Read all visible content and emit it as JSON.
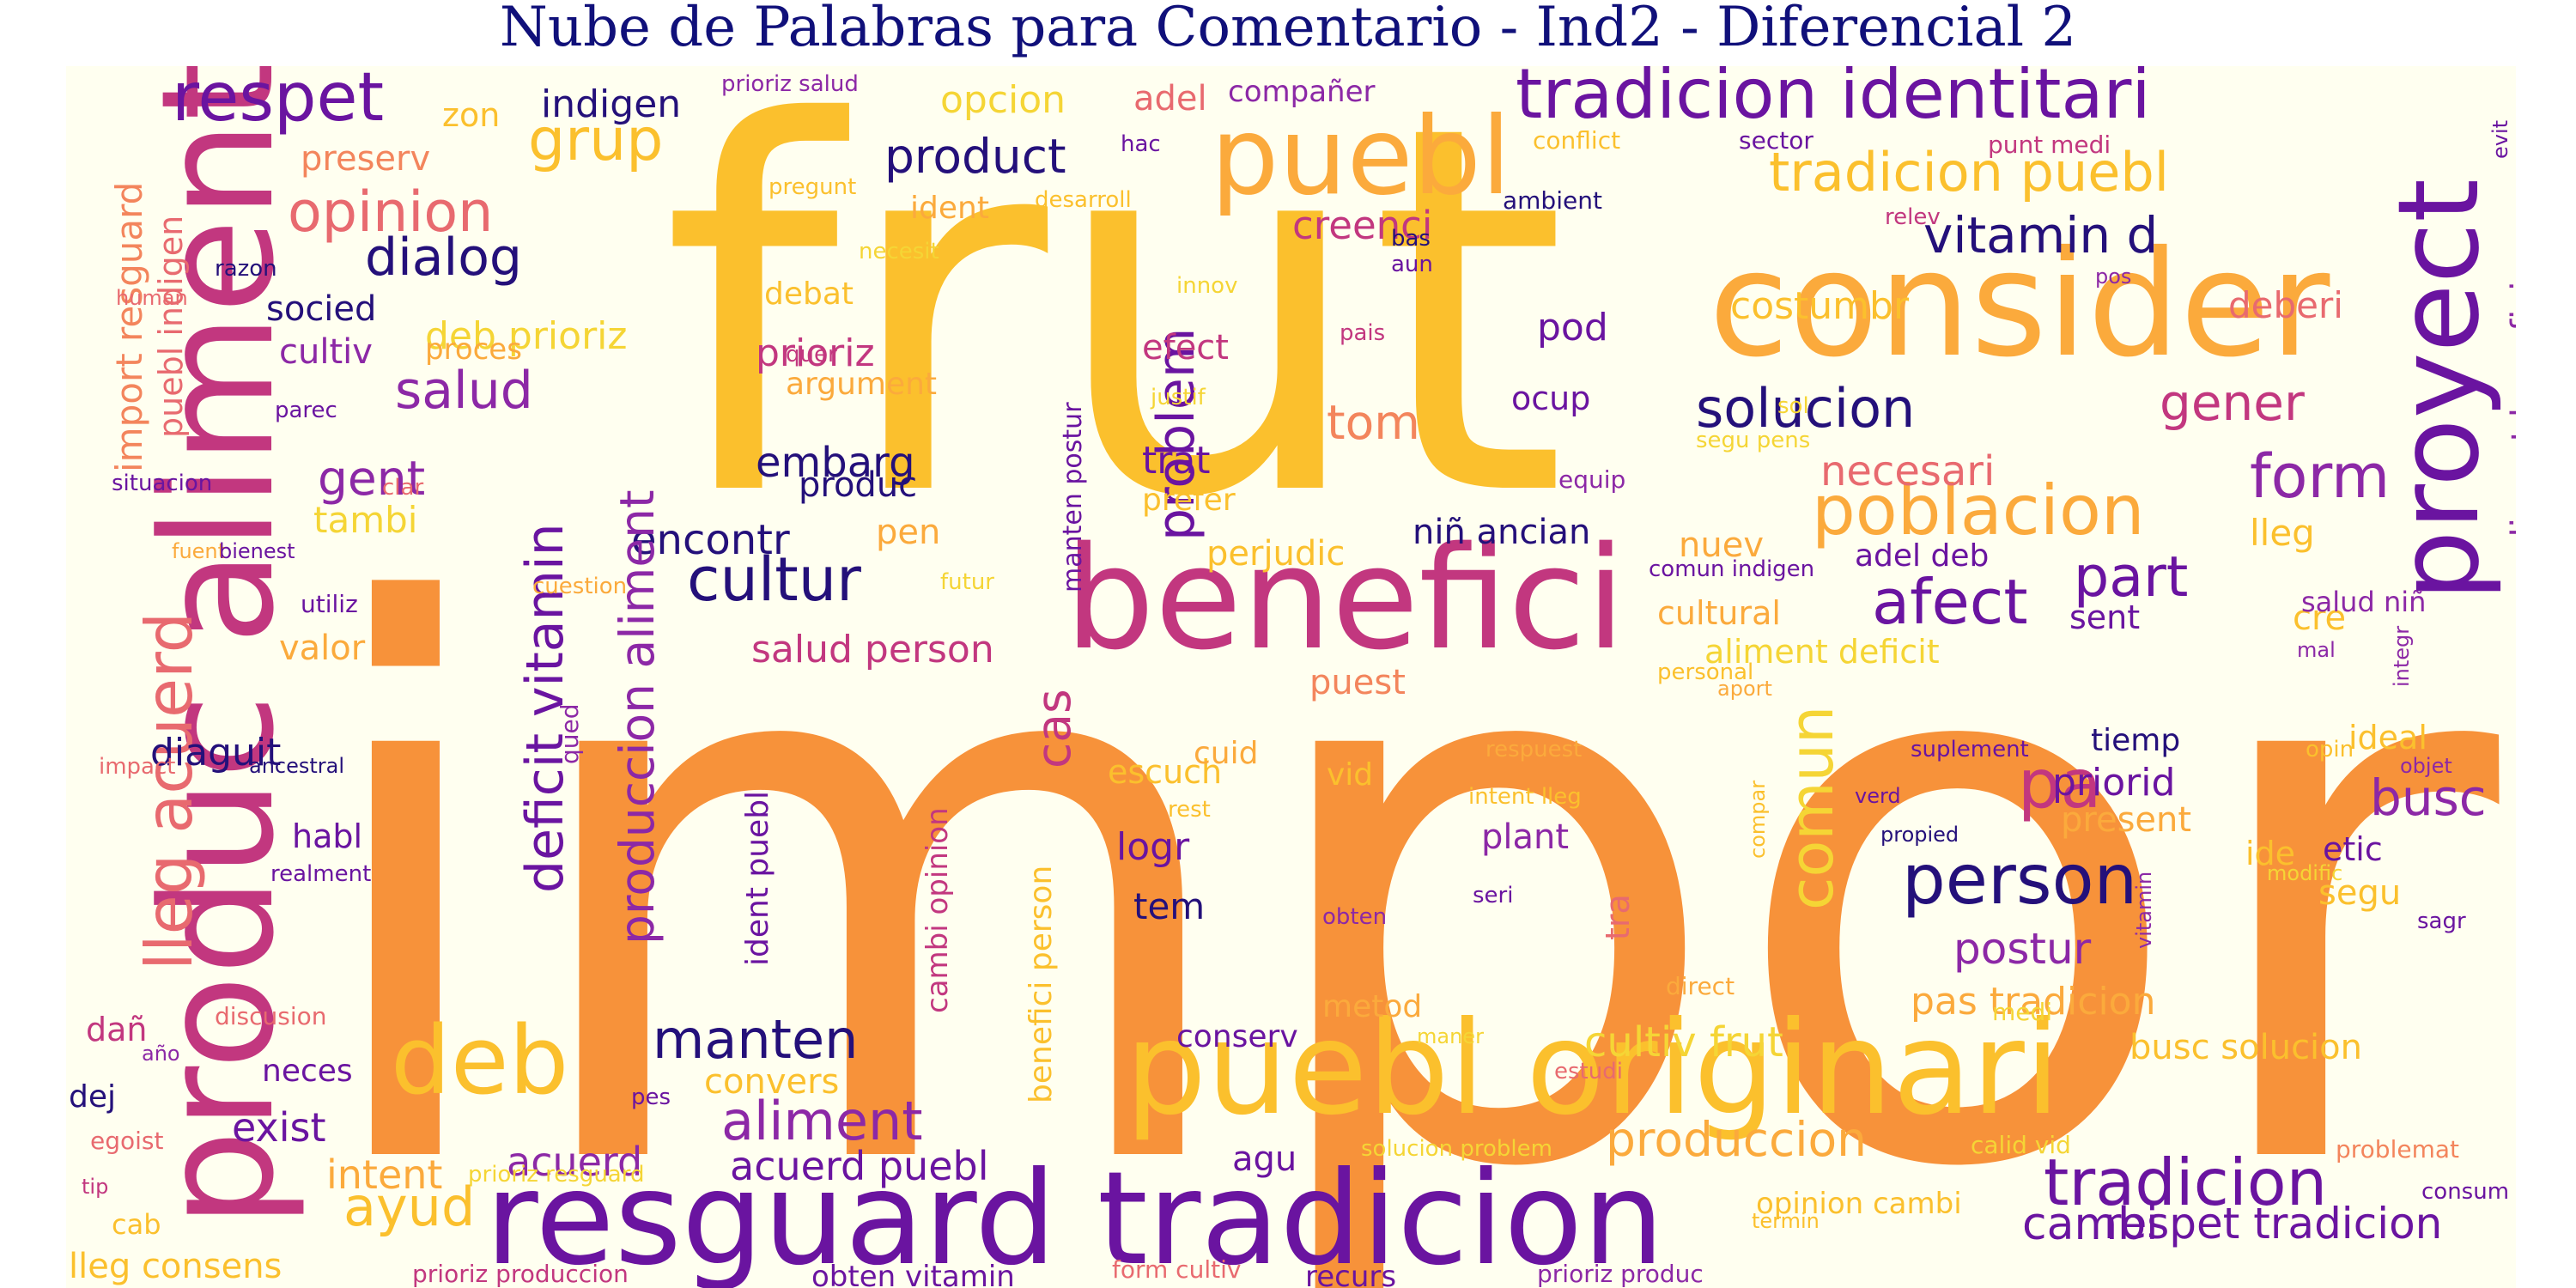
{
  "title": "Nube de Palabras para Comentario - Ind2 - Diferencial 2",
  "colors": {
    "background": "#fffff0",
    "title": "#10107a",
    "palette": {
      "orange": "#f7923a",
      "gold": "#fbc02d",
      "amber": "#fbaa3c",
      "yellow": "#f5d535",
      "magenta": "#c2377f",
      "pink": "#e86a6f",
      "purple": "#8c28a6",
      "violet": "#6a14a0",
      "navy": "#24107a",
      "salmon": "#f3855c"
    }
  },
  "words": [
    {
      "text": "import",
      "color": "orange"
    },
    {
      "text": "frut",
      "color": "gold"
    },
    {
      "text": "produc aliment",
      "color": "magenta",
      "rotated": true
    },
    {
      "text": "consider",
      "color": "amber"
    },
    {
      "text": "benefici",
      "color": "magenta"
    },
    {
      "text": "puebl originari",
      "color": "gold"
    },
    {
      "text": "resguard tradicion",
      "color": "violet"
    },
    {
      "text": "proyect",
      "color": "violet",
      "rotated": true
    },
    {
      "text": "puebl",
      "color": "amber"
    },
    {
      "text": "tradicion identitari",
      "color": "violet"
    },
    {
      "text": "deb",
      "color": "gold"
    },
    {
      "text": "respet",
      "color": "violet"
    },
    {
      "text": "tradicion",
      "color": "violet"
    },
    {
      "text": "poblacion",
      "color": "amber"
    },
    {
      "text": "person",
      "color": "navy"
    },
    {
      "text": "lleg acuerd",
      "color": "pink",
      "rotated": true
    },
    {
      "text": "cultur",
      "color": "navy"
    },
    {
      "text": "tradicion puebl",
      "color": "gold"
    },
    {
      "text": "opinion",
      "color": "pink"
    },
    {
      "text": "manten",
      "color": "navy"
    },
    {
      "text": "aliment",
      "color": "purple"
    },
    {
      "text": "product",
      "color": "navy"
    },
    {
      "text": "vitamin d",
      "color": "navy"
    },
    {
      "text": "solucion",
      "color": "navy"
    },
    {
      "text": "grup",
      "color": "gold"
    },
    {
      "text": "afect",
      "color": "violet"
    },
    {
      "text": "form",
      "color": "purple"
    },
    {
      "text": "pa",
      "color": "magenta"
    },
    {
      "text": "part",
      "color": "violet"
    },
    {
      "text": "comun",
      "color": "yellow",
      "rotated": true
    },
    {
      "text": "dialog",
      "color": "navy"
    },
    {
      "text": "salud",
      "color": "purple"
    },
    {
      "text": "gener",
      "color": "magenta"
    },
    {
      "text": "produccion",
      "color": "amber"
    },
    {
      "text": "ayud",
      "color": "gold"
    },
    {
      "text": "busc",
      "color": "purple"
    },
    {
      "text": "cambi",
      "color": "violet"
    },
    {
      "text": "respet tradicion",
      "color": "violet"
    },
    {
      "text": "acuerd puebl",
      "color": "violet"
    },
    {
      "text": "creenci",
      "color": "magenta"
    },
    {
      "text": "embarg",
      "color": "navy"
    },
    {
      "text": "encontr",
      "color": "navy"
    },
    {
      "text": "necesari",
      "color": "pink"
    },
    {
      "text": "deficit vitamin",
      "color": "violet",
      "rotated": true
    },
    {
      "text": "produccion aliment",
      "color": "purple",
      "rotated": true
    },
    {
      "text": "problem",
      "color": "violet",
      "rotated": true
    },
    {
      "text": "gent",
      "color": "purple"
    },
    {
      "text": "tom",
      "color": "salmon"
    },
    {
      "text": "cas",
      "color": "magenta",
      "rotated": true
    },
    {
      "text": "postur",
      "color": "purple"
    },
    {
      "text": "salud person",
      "color": "magenta"
    },
    {
      "text": "acuerd",
      "color": "purple"
    },
    {
      "text": "intent",
      "color": "amber"
    },
    {
      "text": "exist",
      "color": "violet"
    },
    {
      "text": "diaguit",
      "color": "navy"
    },
    {
      "text": "costumbr",
      "color": "gold"
    },
    {
      "text": "deberi",
      "color": "pink"
    },
    {
      "text": "cultiv frut",
      "color": "yellow"
    },
    {
      "text": "pas tradicion",
      "color": "amber"
    },
    {
      "text": "busc solucion",
      "color": "gold"
    },
    {
      "text": "import resguard",
      "color": "salmon",
      "rotated": true
    },
    {
      "text": "puebl indigen",
      "color": "pink",
      "rotated": true
    },
    {
      "text": "aliment benefici",
      "color": "purple",
      "rotated": true
    },
    {
      "text": "prioriz",
      "color": "magenta"
    },
    {
      "text": "deb prioriz",
      "color": "yellow"
    },
    {
      "text": "indigen",
      "color": "navy"
    },
    {
      "text": "opcion",
      "color": "yellow"
    },
    {
      "text": "adel",
      "color": "pink"
    },
    {
      "text": "compañer",
      "color": "purple"
    },
    {
      "text": "preserv",
      "color": "salmon"
    },
    {
      "text": "zon",
      "color": "gold"
    },
    {
      "text": "socied",
      "color": "navy"
    },
    {
      "text": "cultiv",
      "color": "purple"
    },
    {
      "text": "proces",
      "color": "amber"
    },
    {
      "text": "tambi",
      "color": "yellow"
    },
    {
      "text": "pen",
      "color": "amber"
    },
    {
      "text": "produc",
      "color": "navy"
    },
    {
      "text": "trat",
      "color": "violet"
    },
    {
      "text": "prefer",
      "color": "gold"
    },
    {
      "text": "perjudic",
      "color": "gold"
    },
    {
      "text": "niñ ancian",
      "color": "navy"
    },
    {
      "text": "nuev",
      "color": "amber"
    },
    {
      "text": "adel deb",
      "color": "violet"
    },
    {
      "text": "cultural",
      "color": "amber"
    },
    {
      "text": "aliment deficit",
      "color": "yellow"
    },
    {
      "text": "sent",
      "color": "violet"
    },
    {
      "text": "cre",
      "color": "gold"
    },
    {
      "text": "lleg",
      "color": "gold"
    },
    {
      "text": "salud niñ",
      "color": "purple"
    },
    {
      "text": "priorid",
      "color": "violet"
    },
    {
      "text": "present",
      "color": "amber"
    },
    {
      "text": "ideal",
      "color": "gold"
    },
    {
      "text": "etic",
      "color": "violet"
    },
    {
      "text": "segu",
      "color": "gold"
    },
    {
      "text": "puest",
      "color": "salmon"
    },
    {
      "text": "efect",
      "color": "magenta"
    },
    {
      "text": "argument",
      "color": "amber"
    },
    {
      "text": "pod",
      "color": "violet"
    },
    {
      "text": "ocup",
      "color": "violet"
    },
    {
      "text": "habl",
      "color": "violet"
    },
    {
      "text": "valor",
      "color": "amber"
    },
    {
      "text": "logr",
      "color": "violet"
    },
    {
      "text": "tem",
      "color": "navy"
    },
    {
      "text": "escuch",
      "color": "gold"
    },
    {
      "text": "cuid",
      "color": "amber"
    },
    {
      "text": "vid",
      "color": "gold"
    },
    {
      "text": "plant",
      "color": "purple"
    },
    {
      "text": "tiemp",
      "color": "navy"
    },
    {
      "text": "ide",
      "color": "gold"
    },
    {
      "text": "conserv",
      "color": "violet"
    },
    {
      "text": "agu",
      "color": "violet"
    },
    {
      "text": "metod",
      "color": "amber"
    },
    {
      "text": "neces",
      "color": "violet"
    },
    {
      "text": "dej",
      "color": "navy"
    },
    {
      "text": "cab",
      "color": "gold"
    },
    {
      "text": "dañ",
      "color": "magenta"
    },
    {
      "text": "convers",
      "color": "gold"
    },
    {
      "text": "producccion",
      "color": "gold"
    },
    {
      "text": "opinion cambi",
      "color": "gold"
    },
    {
      "text": "lleg consens",
      "color": "gold"
    },
    {
      "text": "obten vitamin",
      "color": "violet"
    },
    {
      "text": "recurs",
      "color": "violet"
    },
    {
      "text": "prioriz produccion",
      "color": "magenta"
    },
    {
      "text": "prioriz produc",
      "color": "purple"
    },
    {
      "text": "form cultiv",
      "color": "pink"
    },
    {
      "text": "prioriz resguard",
      "color": "yellow"
    },
    {
      "text": "solucion problem",
      "color": "yellow"
    },
    {
      "text": "calid vid",
      "color": "yellow"
    },
    {
      "text": "problemat",
      "color": "salmon"
    },
    {
      "text": "consum",
      "color": "violet"
    },
    {
      "text": "termin",
      "color": "gold"
    },
    {
      "text": "prioriz salud",
      "color": "purple"
    },
    {
      "text": "hac",
      "color": "violet"
    },
    {
      "text": "conflict",
      "color": "gold"
    },
    {
      "text": "sector",
      "color": "violet"
    },
    {
      "text": "punt medi",
      "color": "magenta"
    },
    {
      "text": "evit",
      "color": "violet",
      "rotated": true
    },
    {
      "text": "pregunt",
      "color": "gold"
    },
    {
      "text": "ident",
      "color": "amber"
    },
    {
      "text": "desarroll",
      "color": "gold"
    },
    {
      "text": "ambient",
      "color": "navy"
    },
    {
      "text": "relev",
      "color": "magenta"
    },
    {
      "text": "necesit",
      "color": "yellow"
    },
    {
      "text": "bas",
      "color": "navy"
    },
    {
      "text": "aun",
      "color": "violet"
    },
    {
      "text": "razon",
      "color": "navy"
    },
    {
      "text": "human",
      "color": "pink"
    },
    {
      "text": "debat",
      "color": "gold"
    },
    {
      "text": "innov",
      "color": "yellow"
    },
    {
      "text": "pos",
      "color": "purple"
    },
    {
      "text": "quer",
      "color": "magenta"
    },
    {
      "text": "pais",
      "color": "magenta"
    },
    {
      "text": "justif",
      "color": "yellow"
    },
    {
      "text": "parec",
      "color": "violet"
    },
    {
      "text": "sol",
      "color": "yellow"
    },
    {
      "text": "segu pens",
      "color": "yellow"
    },
    {
      "text": "situacion",
      "color": "violet"
    },
    {
      "text": "clar",
      "color": "pink"
    },
    {
      "text": "equip",
      "color": "purple"
    },
    {
      "text": "fuent",
      "color": "amber"
    },
    {
      "text": "bienest",
      "color": "violet"
    },
    {
      "text": "comun indigen",
      "color": "violet"
    },
    {
      "text": "utiliz",
      "color": "violet"
    },
    {
      "text": "cuestion",
      "color": "amber"
    },
    {
      "text": "futur",
      "color": "yellow"
    },
    {
      "text": "manten postur",
      "color": "violet",
      "rotated": true
    },
    {
      "text": "mal",
      "color": "purple"
    },
    {
      "text": "personal",
      "color": "gold"
    },
    {
      "text": "aport",
      "color": "amber"
    },
    {
      "text": "integr",
      "color": "purple",
      "rotated": true
    },
    {
      "text": "impact",
      "color": "pink"
    },
    {
      "text": "ancestral",
      "color": "navy"
    },
    {
      "text": "qued",
      "color": "purple",
      "rotated": true
    },
    {
      "text": "respuest",
      "color": "amber"
    },
    {
      "text": "intent lleg",
      "color": "gold"
    },
    {
      "text": "suplement",
      "color": "violet"
    },
    {
      "text": "verd",
      "color": "violet"
    },
    {
      "text": "propied",
      "color": "navy"
    },
    {
      "text": "opin",
      "color": "gold"
    },
    {
      "text": "objet",
      "color": "purple"
    },
    {
      "text": "rest",
      "color": "gold"
    },
    {
      "text": "realment",
      "color": "violet"
    },
    {
      "text": "seri",
      "color": "violet"
    },
    {
      "text": "obten",
      "color": "purple"
    },
    {
      "text": "modific",
      "color": "yellow"
    },
    {
      "text": "sagr",
      "color": "violet"
    },
    {
      "text": "medi",
      "color": "yellow"
    },
    {
      "text": "direct",
      "color": "amber"
    },
    {
      "text": "maner",
      "color": "yellow"
    },
    {
      "text": "estudi",
      "color": "pink"
    },
    {
      "text": "discusion",
      "color": "pink"
    },
    {
      "text": "año",
      "color": "purple"
    },
    {
      "text": "pes",
      "color": "violet"
    },
    {
      "text": "egoist",
      "color": "pink"
    },
    {
      "text": "tip",
      "color": "magenta"
    },
    {
      "text": "ident puebl",
      "color": "violet",
      "rotated": true
    },
    {
      "text": "cambi opinion",
      "color": "magenta",
      "rotated": true
    },
    {
      "text": "benefici person",
      "color": "gold",
      "rotated": true
    },
    {
      "text": "compar",
      "color": "gold",
      "rotated": true
    },
    {
      "text": "vitamin",
      "color": "purple",
      "rotated": true
    },
    {
      "text": "tra",
      "color": "pink",
      "rotated": true
    }
  ]
}
